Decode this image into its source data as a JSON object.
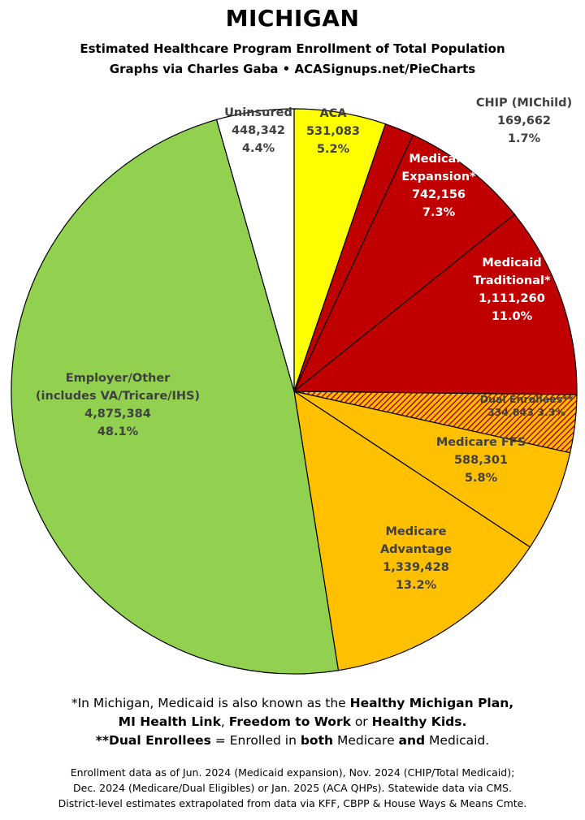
{
  "title": "MICHIGAN",
  "subtitle_line1": "Estimated Healthcare Program Enrollment of Total Population",
  "subtitle_line2": "Graphs via Charles Gaba  •  ACASignups.net/PieCharts",
  "chart_data": {
    "type": "pie",
    "slices": [
      {
        "label_lines": [
          "ACA"
        ],
        "value": 531083,
        "value_text": "531,083",
        "percent": "5.2%",
        "color": "#ffff00",
        "text_color": "#404040",
        "pattern": false
      },
      {
        "label_lines": [
          "CHIP (MIChild)"
        ],
        "value": 169662,
        "value_text": "169,662",
        "percent": "1.7%",
        "color": "#c00000",
        "text_color": "#404040",
        "pattern": false
      },
      {
        "label_lines": [
          "Medicaid",
          "Expansion*"
        ],
        "value": 742156,
        "value_text": "742,156",
        "percent": "7.3%",
        "color": "#c00000",
        "text_color": "#ffffff",
        "pattern": false
      },
      {
        "label_lines": [
          "Medicaid",
          "Traditional*"
        ],
        "value": 1111260,
        "value_text": "1,111,260",
        "percent": "11.0%",
        "color": "#c00000",
        "text_color": "#ffffff",
        "pattern": false
      },
      {
        "label_lines": [
          "Dual Enrollees**"
        ],
        "value": 334843,
        "value_text": "334,843",
        "percent": "3.3%",
        "color": "#c00000",
        "text_color": "#404040",
        "pattern": true
      },
      {
        "label_lines": [
          "Medicare FFS"
        ],
        "value": 588301,
        "value_text": "588,301",
        "percent": "5.8%",
        "color": "#ffc000",
        "text_color": "#404040",
        "pattern": false
      },
      {
        "label_lines": [
          "Medicare",
          "Advantage"
        ],
        "value": 1339428,
        "value_text": "1,339,428",
        "percent": "13.2%",
        "color": "#ffc000",
        "text_color": "#404040",
        "pattern": false
      },
      {
        "label_lines": [
          "Employer/Other",
          "(includes VA/Tricare/IHS)"
        ],
        "value": 4875384,
        "value_text": "4,875,384",
        "percent": "48.1%",
        "color": "#92d050",
        "text_color": "#404040",
        "pattern": false
      },
      {
        "label_lines": [
          "Uninsured"
        ],
        "value": 448342,
        "value_text": "448,342",
        "percent": "4.4%",
        "color": "#ffffff",
        "text_color": "#404040",
        "pattern": false
      }
    ],
    "start_angle": "12 o'clock",
    "direction": "clockwise"
  },
  "footnotes": {
    "line1_pre": "*In Michigan, Medicaid is also known as the ",
    "line1_b": "Healthy Michigan Plan,",
    "line2_b1": "MI Health Link",
    "line2_sep1": ", ",
    "line2_b2": "Freedom to Work",
    "line2_sep2": " or ",
    "line2_b3": "Healthy Kids.",
    "line3_b1": "**Dual Enrollees",
    "line3_t1": " = Enrolled in ",
    "line3_b2": "both",
    "line3_t2": " Medicare ",
    "line3_b3": "and",
    "line3_t3": " Medicaid."
  },
  "source": {
    "line1": "Enrollment data as of Jun. 2024 (Medicaid expansion), Nov. 2024 (CHIP/Total Medicaid);",
    "line2": "Dec. 2024 (Medicare/Dual Eligibles) or Jan. 2025 (ACA QHPs). Statewide data via CMS.",
    "line3": "District-level estimates extrapolated from data via KFF, CBPP & House Ways & Means Cmte."
  }
}
